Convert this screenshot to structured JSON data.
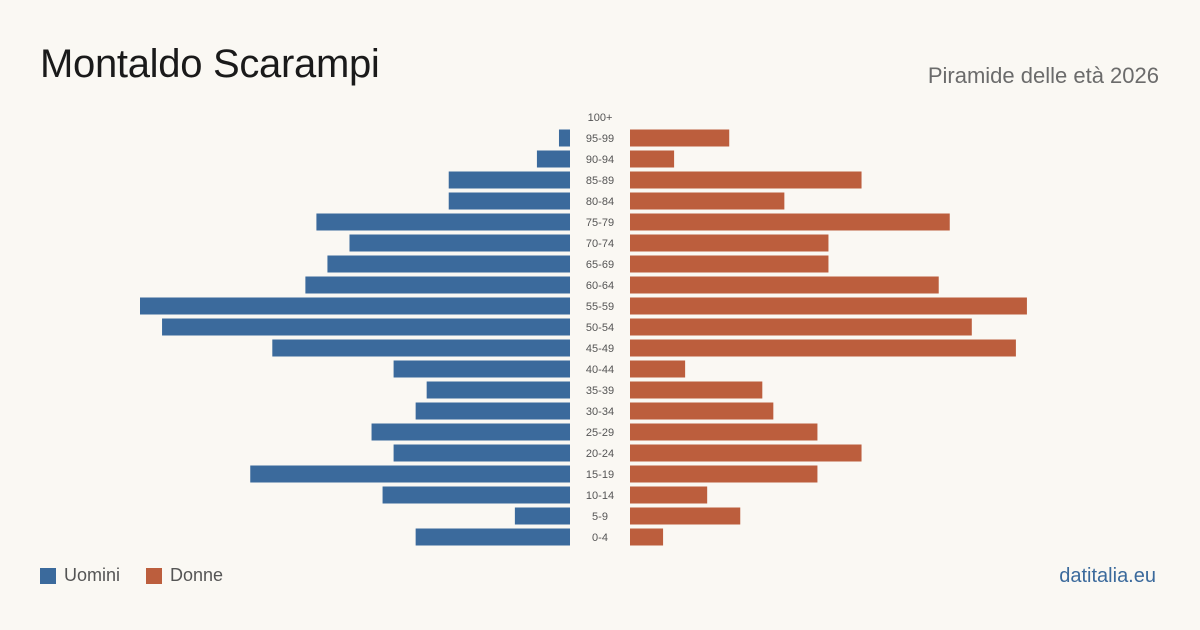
{
  "title": "Montaldo Scarampi",
  "subtitle": "Piramide delle età 2026",
  "brand": "datitalia.eu",
  "colors": {
    "men": "#3b6a9c",
    "women": "#bc5e3d",
    "background": "#faf8f3"
  },
  "legend": {
    "men_label": "Uomini",
    "women_label": "Donne"
  },
  "chart_data": {
    "type": "bar",
    "orientation": "horizontal-pyramid",
    "categories": [
      "100+",
      "95-99",
      "90-94",
      "85-89",
      "80-84",
      "75-79",
      "70-74",
      "65-69",
      "60-64",
      "55-59",
      "50-54",
      "45-49",
      "40-44",
      "35-39",
      "30-34",
      "25-29",
      "20-24",
      "15-19",
      "10-14",
      "5-9",
      "0-4"
    ],
    "series": [
      {
        "name": "Uomini",
        "values": [
          0,
          1,
          3,
          11,
          11,
          23,
          20,
          22,
          24,
          39,
          37,
          27,
          16,
          13,
          14,
          18,
          16,
          29,
          17,
          5,
          14
        ]
      },
      {
        "name": "Donne",
        "values": [
          0,
          9,
          4,
          21,
          14,
          29,
          18,
          18,
          28,
          36,
          31,
          35,
          5,
          12,
          13,
          17,
          21,
          17,
          7,
          10,
          3
        ]
      }
    ],
    "xlim": [
      0,
      39
    ],
    "grid": false,
    "legend_position": "bottom-left"
  }
}
